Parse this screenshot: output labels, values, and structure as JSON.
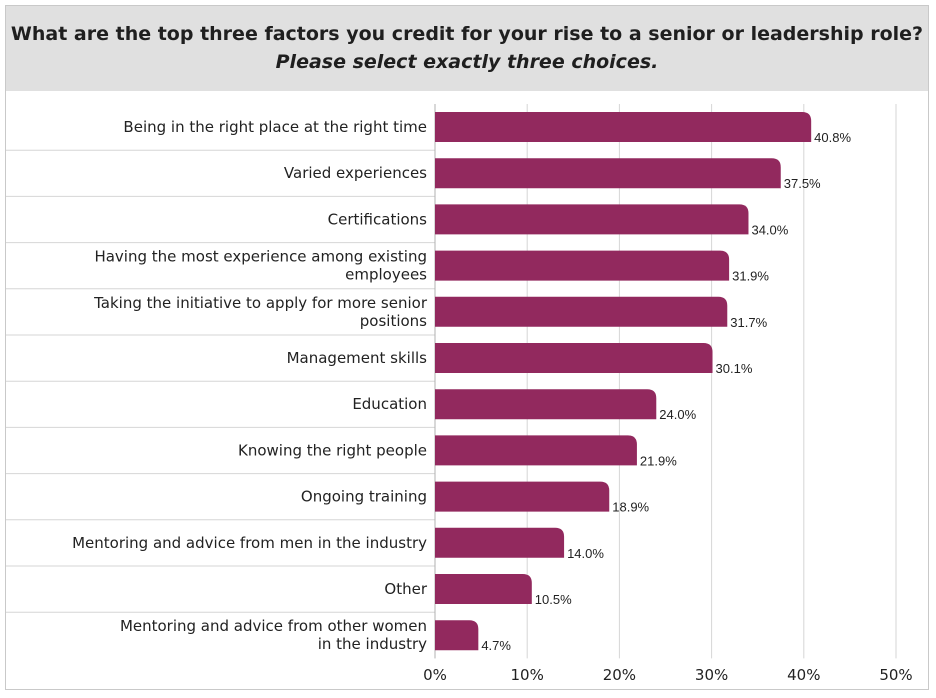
{
  "chart_data": {
    "type": "bar",
    "orientation": "horizontal",
    "title": "What are the top three factors you credit for your rise to a senior or leadership role?",
    "subtitle": "Please select exactly three choices.",
    "categories": [
      [
        "Being in the right place at the right time"
      ],
      [
        "Varied experiences"
      ],
      [
        "Certifications"
      ],
      [
        "Having the most experience among existing",
        "employees"
      ],
      [
        "Taking the initiative to apply for more senior",
        "positions"
      ],
      [
        "Management skills"
      ],
      [
        "Education"
      ],
      [
        "Knowing the right people"
      ],
      [
        "Ongoing training"
      ],
      [
        "Mentoring and advice from men in the industry"
      ],
      [
        "Other"
      ],
      [
        "Mentoring and advice from other women",
        "in the industry"
      ]
    ],
    "values": [
      40.8,
      37.5,
      34.0,
      31.9,
      31.7,
      30.1,
      24.0,
      21.9,
      18.9,
      14.0,
      10.5,
      4.7
    ],
    "value_labels": [
      "40.8%",
      "37.5%",
      "34.0%",
      "31.9%",
      "31.7%",
      "30.1%",
      "24.0%",
      "21.9%",
      "18.9%",
      "14.0%",
      "10.5%",
      "4.7%"
    ],
    "xlim": [
      0,
      50
    ],
    "x_ticks": [
      0,
      10,
      20,
      30,
      40,
      50
    ],
    "x_tick_labels": [
      "0%",
      "10%",
      "20%",
      "30%",
      "40%",
      "50%"
    ],
    "grid": true,
    "bar_color": "#92295e",
    "grid_color": "#d6d6d6"
  }
}
